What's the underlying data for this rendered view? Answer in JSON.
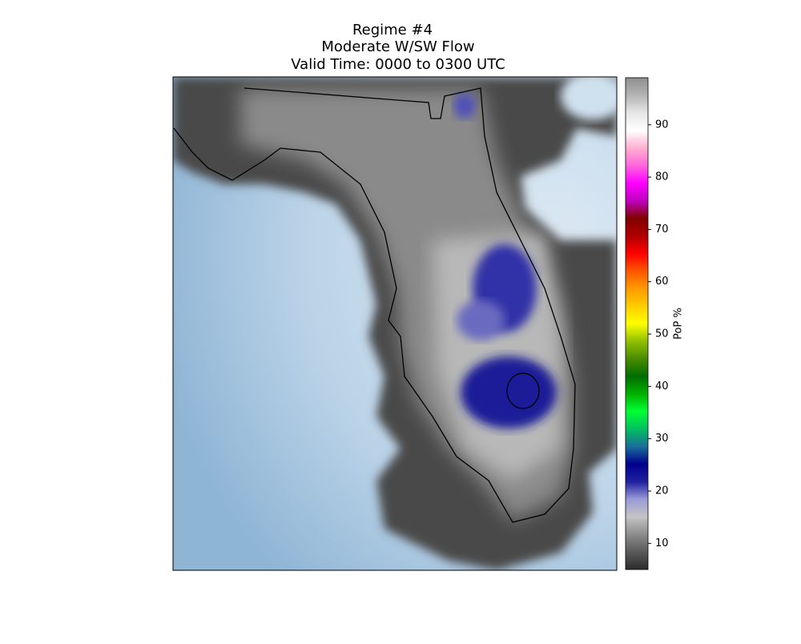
{
  "title": [
    "Regime #4",
    "Moderate W/SW Flow",
    "Valid Time: 0000 to 0300 UTC"
  ],
  "colorbar": {
    "label": "PoP %",
    "lim": [
      5,
      99
    ],
    "ticks": [
      10,
      20,
      30,
      40,
      50,
      60,
      70,
      80,
      90
    ],
    "colors": [
      "#2b2b2b",
      "#5a5a5a",
      "#8c8c8c",
      "#c4c4c4",
      "#9a9ad8",
      "#2020a0",
      "#00008c",
      "#1a6e9a",
      "#00c060",
      "#00ff33",
      "#00b000",
      "#006e00",
      "#4a8c00",
      "#90c000",
      "#ffff00",
      "#ffcc00",
      "#ff9900",
      "#ff5500",
      "#ff0000",
      "#b00000",
      "#800000",
      "#c000c0",
      "#ff00ff",
      "#ff66dd",
      "#ffb0d0",
      "#ffffff",
      "#e6e6e6",
      "#b4b4b4",
      "#8e8e8e"
    ]
  }
}
